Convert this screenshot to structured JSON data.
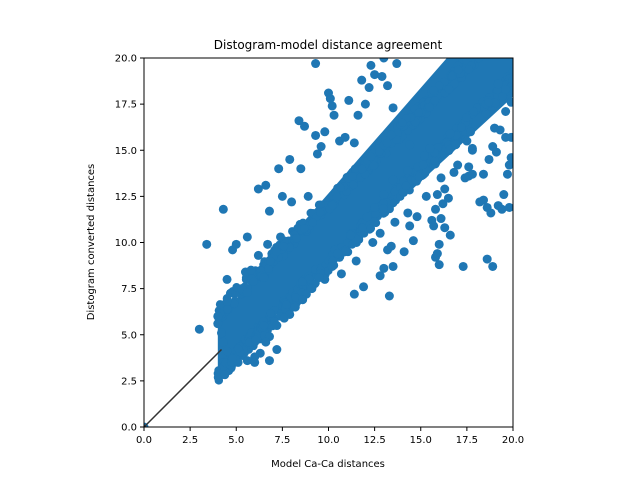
{
  "chart_data": {
    "type": "scatter",
    "title": "Distogram-model distance agreement",
    "xlabel": "Model Ca-Ca distances",
    "ylabel": "Distogram converted distances",
    "xlim": [
      0,
      20
    ],
    "ylim": [
      0,
      20
    ],
    "xticks": [
      "0.0",
      "2.5",
      "5.0",
      "7.5",
      "10.0",
      "12.5",
      "15.0",
      "17.5",
      "20.0"
    ],
    "yticks": [
      "0.0",
      "2.5",
      "5.0",
      "7.5",
      "10.0",
      "12.5",
      "15.0",
      "17.5",
      "20.0"
    ],
    "grid": false,
    "marker_color": "#1f77b4",
    "reference_line": {
      "color": "#333333",
      "x": [
        0,
        4.2
      ],
      "y": [
        0,
        4.2
      ]
    },
    "dense_band": {
      "x_start": 4.0,
      "x_end": 20.0,
      "slope": 1.0,
      "intercept": 0.5,
      "spread": 1.6
    },
    "points": [
      [
        0.0,
        0.0
      ],
      [
        3.0,
        5.3
      ],
      [
        3.4,
        9.9
      ],
      [
        4.3,
        11.8
      ],
      [
        4.5,
        8.0
      ],
      [
        4.8,
        9.6
      ],
      [
        5.0,
        9.9
      ],
      [
        5.3,
        7.5
      ],
      [
        5.5,
        8.4
      ],
      [
        5.6,
        10.3
      ],
      [
        5.6,
        7.3
      ],
      [
        5.8,
        8.5
      ],
      [
        6.2,
        12.9
      ],
      [
        6.2,
        9.3
      ],
      [
        6.5,
        8.1
      ],
      [
        6.6,
        13.1
      ],
      [
        6.7,
        9.9
      ],
      [
        6.8,
        11.7
      ],
      [
        7.3,
        14.0
      ],
      [
        7.4,
        10.3
      ],
      [
        7.5,
        12.5
      ],
      [
        7.9,
        14.5
      ],
      [
        8.0,
        12.2
      ],
      [
        8.4,
        16.6
      ],
      [
        8.5,
        14.0
      ],
      [
        8.7,
        16.3
      ],
      [
        8.9,
        12.5
      ],
      [
        9.3,
        19.7
      ],
      [
        9.3,
        15.8
      ],
      [
        9.4,
        14.8
      ],
      [
        9.6,
        15.2
      ],
      [
        9.8,
        16.0
      ],
      [
        10.0,
        18.1
      ],
      [
        10.1,
        17.8
      ],
      [
        10.2,
        17.4
      ],
      [
        10.3,
        16.9
      ],
      [
        10.6,
        15.5
      ],
      [
        10.9,
        15.7
      ],
      [
        11.1,
        17.7
      ],
      [
        11.4,
        15.4
      ],
      [
        11.4,
        7.2
      ],
      [
        11.6,
        16.9
      ],
      [
        11.8,
        18.8
      ],
      [
        11.9,
        7.6
      ],
      [
        12.0,
        17.5
      ],
      [
        12.2,
        18.4
      ],
      [
        12.3,
        19.6
      ],
      [
        12.5,
        19.1
      ],
      [
        12.9,
        19.0
      ],
      [
        13.0,
        20.0
      ],
      [
        13.2,
        18.5
      ],
      [
        13.5,
        17.3
      ],
      [
        13.7,
        19.7
      ],
      [
        12.8,
        8.2
      ],
      [
        13.0,
        8.6
      ],
      [
        13.2,
        9.6
      ],
      [
        13.4,
        9.8
      ],
      [
        13.5,
        8.7
      ],
      [
        13.3,
        7.1
      ],
      [
        14.1,
        9.5
      ],
      [
        14.4,
        10.9
      ],
      [
        14.6,
        10.1
      ],
      [
        14.8,
        11.4
      ],
      [
        15.6,
        11.2
      ],
      [
        15.8,
        11.8
      ],
      [
        15.9,
        12.6
      ],
      [
        15.8,
        9.2
      ],
      [
        15.9,
        9.4
      ],
      [
        16.0,
        9.9
      ],
      [
        16.0,
        8.8
      ],
      [
        15.7,
        10.9
      ],
      [
        16.1,
        11.3
      ],
      [
        16.2,
        12.1
      ],
      [
        16.3,
        12.9
      ],
      [
        16.5,
        12.4
      ],
      [
        16.8,
        13.8
      ],
      [
        16.6,
        10.4
      ],
      [
        16.3,
        10.8
      ],
      [
        17.4,
        13.5
      ],
      [
        17.6,
        13.6
      ],
      [
        17.8,
        13.7
      ],
      [
        17.6,
        14.1
      ],
      [
        17.8,
        15.0
      ],
      [
        18.2,
        12.2
      ],
      [
        18.4,
        12.3
      ],
      [
        18.6,
        11.9
      ],
      [
        18.8,
        11.6
      ],
      [
        19.2,
        12.0
      ],
      [
        19.4,
        11.8
      ],
      [
        19.5,
        12.6
      ],
      [
        18.4,
        13.7
      ],
      [
        18.7,
        14.5
      ],
      [
        19.1,
        14.9
      ],
      [
        19.6,
        15.7
      ],
      [
        19.3,
        16.1
      ],
      [
        18.9,
        15.2
      ],
      [
        17.3,
        8.7
      ],
      [
        18.6,
        9.1
      ],
      [
        18.9,
        8.7
      ],
      [
        19.8,
        11.9
      ],
      [
        19.8,
        14.2
      ],
      [
        19.7,
        13.7
      ],
      [
        19.9,
        15.7
      ],
      [
        19.9,
        14.6
      ],
      [
        17.7,
        16.0
      ],
      [
        17.5,
        15.5
      ],
      [
        16.9,
        15.3
      ],
      [
        16.6,
        15.9
      ],
      [
        15.5,
        15.1
      ],
      [
        15.2,
        14.7
      ],
      [
        14.4,
        15.3
      ],
      [
        14.3,
        13.9
      ],
      [
        13.5,
        13.4
      ],
      [
        13.0,
        12.6
      ],
      [
        12.5,
        11.9
      ],
      [
        12.1,
        11.4
      ],
      [
        11.5,
        10.2
      ],
      [
        11.2,
        10.4
      ],
      [
        10.9,
        9.5
      ],
      [
        10.5,
        9.4
      ],
      [
        10.2,
        8.7
      ],
      [
        9.8,
        8.0
      ],
      [
        9.5,
        8.1
      ],
      [
        9.1,
        7.5
      ],
      [
        8.8,
        7.2
      ],
      [
        8.6,
        6.9
      ],
      [
        8.2,
        6.5
      ],
      [
        7.9,
        6.1
      ],
      [
        7.6,
        5.9
      ],
      [
        7.2,
        5.5
      ],
      [
        6.8,
        4.9
      ],
      [
        6.6,
        4.6
      ],
      [
        6.3,
        4.0
      ],
      [
        6.0,
        3.8
      ],
      [
        5.6,
        3.6
      ],
      [
        5.1,
        3.5
      ],
      [
        4.8,
        3.7
      ],
      [
        4.5,
        4.1
      ],
      [
        4.3,
        4.6
      ],
      [
        4.2,
        5.1
      ],
      [
        4.0,
        5.6
      ],
      [
        4.0,
        6.0
      ],
      [
        4.5,
        6.8
      ],
      [
        6.8,
        3.6
      ],
      [
        7.2,
        4.2
      ],
      [
        6.0,
        3.5
      ],
      [
        10.7,
        8.3
      ],
      [
        11.5,
        9.0
      ],
      [
        12.4,
        10.0
      ],
      [
        12.8,
        10.5
      ],
      [
        13.6,
        11.1
      ],
      [
        14.3,
        11.6
      ],
      [
        15.3,
        12.5
      ],
      [
        16.1,
        13.5
      ],
      [
        17.0,
        14.2
      ],
      [
        17.8,
        15.1
      ],
      [
        19.0,
        16.2
      ],
      [
        19.6,
        17.1
      ],
      [
        19.9,
        17.6
      ],
      [
        19.6,
        18.3
      ],
      [
        19.2,
        18.6
      ]
    ]
  }
}
